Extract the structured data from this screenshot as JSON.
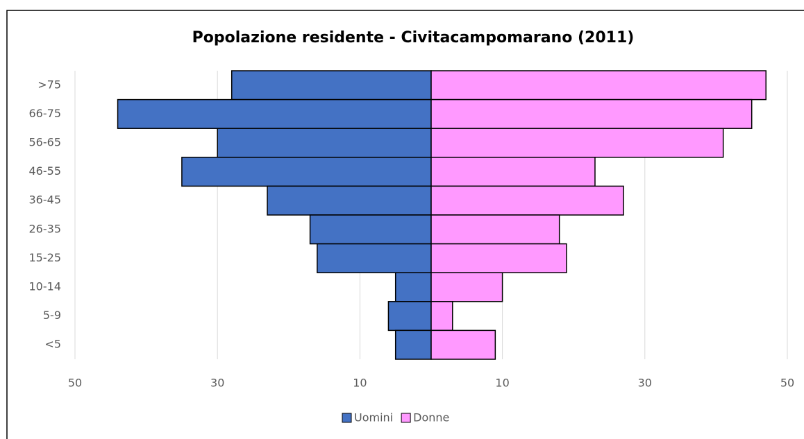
{
  "chart_data": {
    "type": "pyramid",
    "title": "Popolazione residente - Civitacampomarano (2011)",
    "categories": [
      ">75",
      "66-75",
      "56-65",
      "46-55",
      "36-45",
      "26-35",
      "15-25",
      "10-14",
      "5-9",
      "<5"
    ],
    "series": [
      {
        "name": "Uomini",
        "color": "#4472c4",
        "values": [
          -28,
          -44,
          -30,
          -35,
          -23,
          -17,
          -16,
          -5,
          -6,
          -5
        ]
      },
      {
        "name": "Donne",
        "color": "#ff99ff",
        "values": [
          47,
          45,
          41,
          23,
          27,
          18,
          19,
          10,
          3,
          9
        ]
      }
    ],
    "xlim": [
      -50,
      50
    ],
    "xticks": [
      {
        "value": -50,
        "label": "50"
      },
      {
        "value": -30,
        "label": "30"
      },
      {
        "value": -10,
        "label": "10"
      },
      10,
      30,
      50
    ],
    "grid": true,
    "legend": "bottom"
  }
}
